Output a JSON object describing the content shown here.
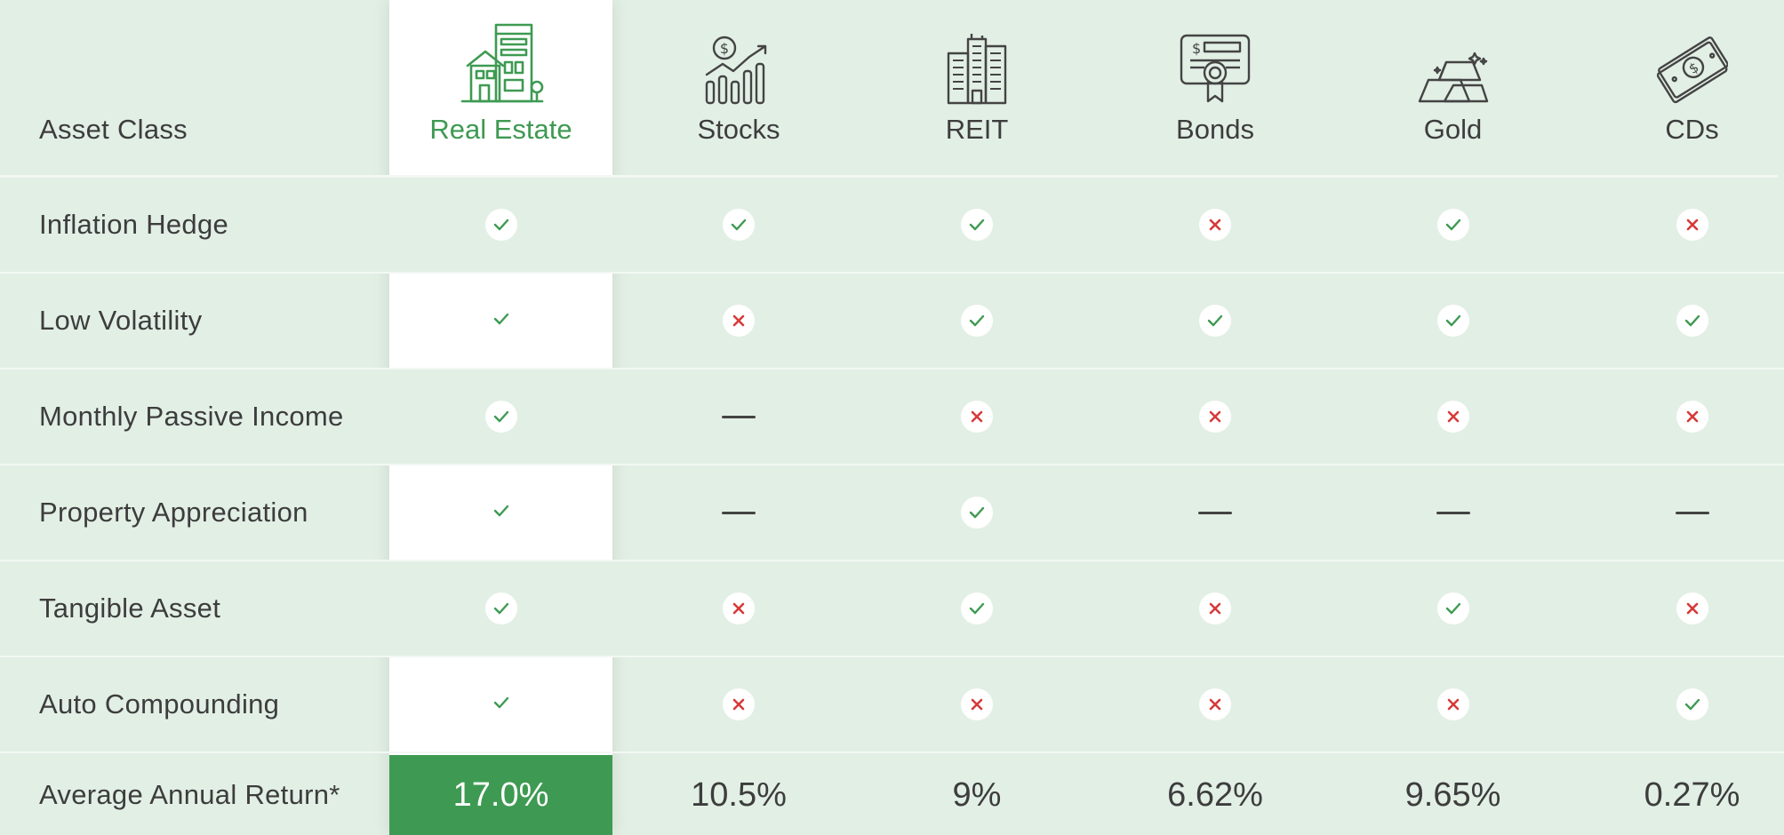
{
  "header": {
    "label": "Asset Class",
    "columns": [
      {
        "label": "Real Estate",
        "icon": "building-house-icon"
      },
      {
        "label": "Stocks",
        "icon": "stock-chart-icon"
      },
      {
        "label": "REIT",
        "icon": "office-buildings-icon"
      },
      {
        "label": "Bonds",
        "icon": "certificate-icon"
      },
      {
        "label": "Gold",
        "icon": "gold-bars-icon"
      },
      {
        "label": "CDs",
        "icon": "cash-icon"
      }
    ]
  },
  "rows": [
    {
      "label": "Inflation Hedge",
      "values": [
        "check",
        "check",
        "check",
        "cross",
        "check",
        "cross"
      ]
    },
    {
      "label": "Low Volatility",
      "values": [
        "check",
        "cross",
        "check",
        "check",
        "check",
        "check"
      ]
    },
    {
      "label": "Monthly Passive Income",
      "values": [
        "check",
        "dash",
        "cross",
        "cross",
        "cross",
        "cross"
      ]
    },
    {
      "label": "Property Appreciation",
      "values": [
        "check",
        "dash",
        "check",
        "dash",
        "dash",
        "dash"
      ]
    },
    {
      "label": "Tangible Asset",
      "values": [
        "check",
        "cross",
        "check",
        "cross",
        "check",
        "cross"
      ]
    },
    {
      "label": "Auto Compounding",
      "values": [
        "check",
        "cross",
        "cross",
        "cross",
        "cross",
        "check"
      ]
    }
  ],
  "returns": {
    "label": "Average Annual Return*",
    "values": [
      "17.0%",
      "10.5%",
      "9%",
      "6.62%",
      "9.65%",
      "0.27%"
    ]
  },
  "colors": {
    "accent": "#3e9a52",
    "check": "#3e9a52",
    "cross": "#d63a3a",
    "background": "#e2efe5"
  }
}
